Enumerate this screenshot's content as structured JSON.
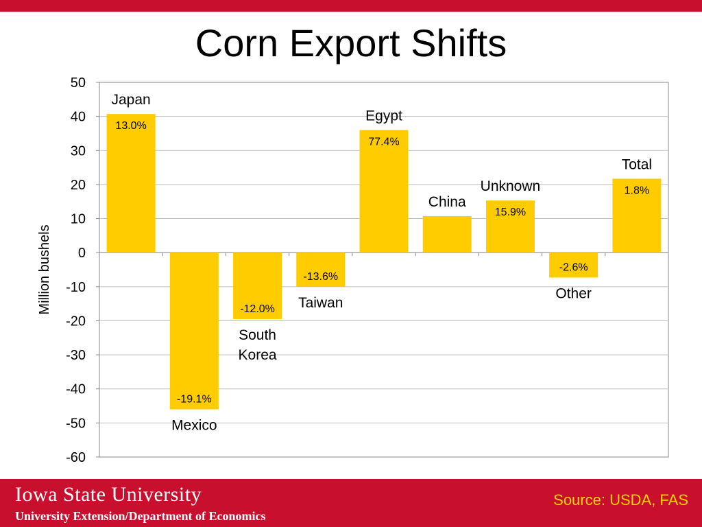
{
  "slide": {
    "title": "Corn Export Shifts"
  },
  "footer": {
    "university": "Iowa State University",
    "department": "University Extension/Department of Economics",
    "source": "Source: USDA, FAS"
  },
  "colors": {
    "accent_red": "#c8102e",
    "bar": "#ffcc00",
    "source_text": "#ffd200"
  },
  "chart_data": {
    "type": "bar",
    "ylabel": "Million bushels",
    "ylim": [
      -60,
      50
    ],
    "yticks": [
      50,
      40,
      30,
      20,
      10,
      0,
      -10,
      -20,
      -30,
      -40,
      -50,
      -60
    ],
    "grid": true,
    "categories": [
      "Japan",
      "Mexico",
      "South Korea",
      "Taiwan",
      "Egypt",
      "China",
      "Unknown",
      "Other",
      "Total"
    ],
    "values": [
      40.7,
      -46,
      -19.5,
      -10,
      36,
      10.7,
      15.3,
      -7.3,
      21.7
    ],
    "pct_labels": [
      "13.0%",
      "-19.1%",
      "-12.0%",
      "-13.6%",
      "77.4%",
      "",
      "15.9%",
      "-2.6%",
      "1.8%"
    ]
  }
}
